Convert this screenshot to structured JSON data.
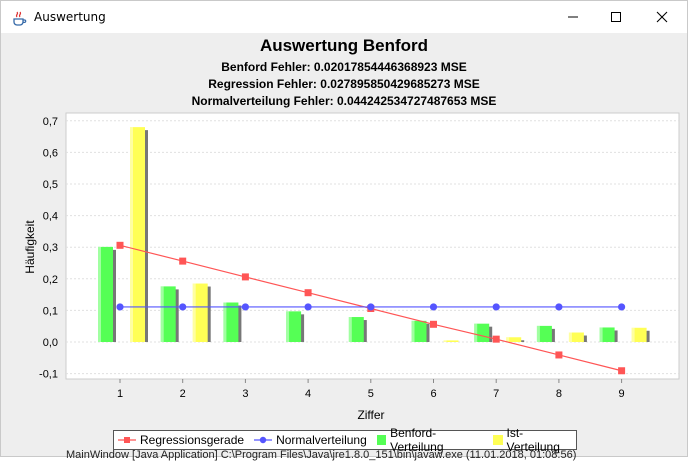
{
  "window": {
    "title": "Auswertung"
  },
  "header": {
    "title": "Auswertung Benford",
    "line1": "Benford Fehler: 0.02017854446368923 MSE",
    "line2": "Regression Fehler: 0.027895850429685273 MSE",
    "line3": "Normalverteilung Fehler: 0.044242534727487653 MSE"
  },
  "chart_data": {
    "type": "bar",
    "xlabel": "Ziffer",
    "ylabel": "Häufigkeit",
    "categories": [
      "1",
      "2",
      "3",
      "4",
      "5",
      "6",
      "7",
      "8",
      "9"
    ],
    "ylim": [
      -0.12,
      0.72
    ],
    "yticks": [
      "0,7",
      "0,6",
      "0,5",
      "0,4",
      "0,3",
      "0,2",
      "0,1",
      "0,0",
      "-0,1"
    ],
    "ytick_values": [
      0.7,
      0.6,
      0.5,
      0.4,
      0.3,
      0.2,
      0.1,
      0.0,
      -0.1
    ],
    "grid": true,
    "legend": "bottom",
    "series": [
      {
        "name": "Regressionsgerade",
        "kind": "line",
        "color": "#ff5555",
        "values": [
          0.306,
          0.256,
          0.206,
          0.156,
          0.106,
          0.056,
          0.009,
          -0.041,
          -0.091
        ]
      },
      {
        "name": "Normalverteilung",
        "kind": "line",
        "color": "#5555ff",
        "values": [
          0.111,
          0.111,
          0.111,
          0.111,
          0.111,
          0.111,
          0.111,
          0.111,
          0.111
        ]
      },
      {
        "name": "Benford-Verteilung",
        "kind": "bar",
        "color": "#55ff55",
        "values": [
          0.301,
          0.176,
          0.125,
          0.097,
          0.079,
          0.067,
          0.058,
          0.051,
          0.046
        ]
      },
      {
        "name": "Ist-Verteilung",
        "kind": "bar",
        "color": "#ffff55",
        "values": [
          0.68,
          0.185,
          0.0,
          0.0,
          0.0,
          0.005,
          0.015,
          0.03,
          0.045
        ]
      }
    ]
  },
  "status": {
    "text": "MainWindow [Java Application] C:\\Program Files\\Java\\jre1.8.0_151\\bin\\javaw.exe (11.01.2018, 01:08:56)"
  }
}
